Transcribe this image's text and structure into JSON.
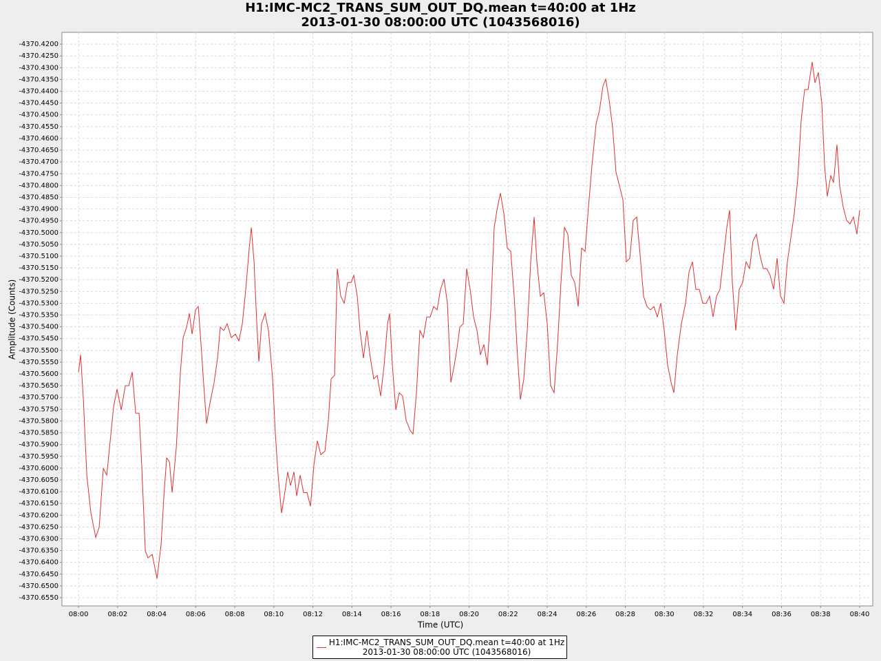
{
  "chart_data": {
    "type": "line",
    "title": "H1:IMC-MC2_TRANS_SUM_OUT_DQ.mean t=40:00 at 1Hz",
    "subtitle": "2013-01-30 08:00:00 UTC (1043568016)",
    "x_label": "Time (UTC)",
    "y_label": "Amplitude (Counts)",
    "grid": true,
    "legend": "bottom",
    "xlim": [
      -0.85,
      40.67
    ],
    "ylim": [
      -4370.6585,
      -4370.415
    ],
    "xticks": [
      {
        "value": 0,
        "label": "08:00"
      },
      {
        "value": 2,
        "label": "08:02"
      },
      {
        "value": 4,
        "label": "08:04"
      },
      {
        "value": 6,
        "label": "08:06"
      },
      {
        "value": 8,
        "label": "08:08"
      },
      {
        "value": 10,
        "label": "08:10"
      },
      {
        "value": 12,
        "label": "08:12"
      },
      {
        "value": 14,
        "label": "08:14"
      },
      {
        "value": 16,
        "label": "08:16"
      },
      {
        "value": 18,
        "label": "08:18"
      },
      {
        "value": 20,
        "label": "08:20"
      },
      {
        "value": 22,
        "label": "08:22"
      },
      {
        "value": 24,
        "label": "08:24"
      },
      {
        "value": 26,
        "label": "08:26"
      },
      {
        "value": 28,
        "label": "08:28"
      },
      {
        "value": 30,
        "label": "08:30"
      },
      {
        "value": 32,
        "label": "08:32"
      },
      {
        "value": 34,
        "label": "08:34"
      },
      {
        "value": 36,
        "label": "08:36"
      },
      {
        "value": 38,
        "label": "08:38"
      },
      {
        "value": 40,
        "label": "08:40"
      }
    ],
    "yticks": [
      {
        "value": -4370.42,
        "label": "-4370.4200"
      },
      {
        "value": -4370.425,
        "label": "-4370.4250"
      },
      {
        "value": -4370.43,
        "label": "-4370.4300"
      },
      {
        "value": -4370.435,
        "label": "-4370.4350"
      },
      {
        "value": -4370.44,
        "label": "-4370.4400"
      },
      {
        "value": -4370.445,
        "label": "-4370.4450"
      },
      {
        "value": -4370.45,
        "label": "-4370.4500"
      },
      {
        "value": -4370.455,
        "label": "-4370.4550"
      },
      {
        "value": -4370.46,
        "label": "-4370.4600"
      },
      {
        "value": -4370.465,
        "label": "-4370.4650"
      },
      {
        "value": -4370.47,
        "label": "-4370.4700"
      },
      {
        "value": -4370.475,
        "label": "-4370.4750"
      },
      {
        "value": -4370.48,
        "label": "-4370.4800"
      },
      {
        "value": -4370.485,
        "label": "-4370.4850"
      },
      {
        "value": -4370.49,
        "label": "-4370.4900"
      },
      {
        "value": -4370.495,
        "label": "-4370.4950"
      },
      {
        "value": -4370.5,
        "label": "-4370.5000"
      },
      {
        "value": -4370.505,
        "label": "-4370.5050"
      },
      {
        "value": -4370.51,
        "label": "-4370.5100"
      },
      {
        "value": -4370.515,
        "label": "-4370.5150"
      },
      {
        "value": -4370.52,
        "label": "-4370.5200"
      },
      {
        "value": -4370.525,
        "label": "-4370.5250"
      },
      {
        "value": -4370.53,
        "label": "-4370.5300"
      },
      {
        "value": -4370.535,
        "label": "-4370.5350"
      },
      {
        "value": -4370.54,
        "label": "-4370.5400"
      },
      {
        "value": -4370.545,
        "label": "-4370.5450"
      },
      {
        "value": -4370.55,
        "label": "-4370.5500"
      },
      {
        "value": -4370.555,
        "label": "-4370.5550"
      },
      {
        "value": -4370.56,
        "label": "-4370.5600"
      },
      {
        "value": -4370.565,
        "label": "-4370.5650"
      },
      {
        "value": -4370.57,
        "label": "-4370.5700"
      },
      {
        "value": -4370.575,
        "label": "-4370.5750"
      },
      {
        "value": -4370.58,
        "label": "-4370.5800"
      },
      {
        "value": -4370.585,
        "label": "-4370.5850"
      },
      {
        "value": -4370.59,
        "label": "-4370.5900"
      },
      {
        "value": -4370.595,
        "label": "-4370.5950"
      },
      {
        "value": -4370.6,
        "label": "-4370.6000"
      },
      {
        "value": -4370.605,
        "label": "-4370.6050"
      },
      {
        "value": -4370.61,
        "label": "-4370.6100"
      },
      {
        "value": -4370.615,
        "label": "-4370.6150"
      },
      {
        "value": -4370.62,
        "label": "-4370.6200"
      },
      {
        "value": -4370.625,
        "label": "-4370.6250"
      },
      {
        "value": -4370.63,
        "label": "-4370.6300"
      },
      {
        "value": -4370.635,
        "label": "-4370.6350"
      },
      {
        "value": -4370.64,
        "label": "-4370.6400"
      },
      {
        "value": -4370.645,
        "label": "-4370.6450"
      },
      {
        "value": -4370.65,
        "label": "-4370.6500"
      },
      {
        "value": -4370.655,
        "label": "-4370.6550"
      }
    ],
    "x": [
      0,
      0.106,
      0.247,
      0.423,
      0.634,
      0.881,
      1.057,
      1.268,
      1.445,
      1.621,
      1.797,
      1.974,
      2.185,
      2.396,
      2.573,
      2.749,
      2.925,
      3.101,
      3.242,
      3.419,
      3.56,
      3.771,
      4.018,
      4.229,
      4.37,
      4.511,
      4.652,
      4.793,
      5.004,
      5.216,
      5.357,
      5.533,
      5.674,
      5.815,
      5.991,
      6.132,
      6.273,
      6.414,
      6.555,
      6.731,
      6.943,
      7.119,
      7.26,
      7.436,
      7.612,
      7.824,
      8.035,
      8.211,
      8.388,
      8.564,
      8.74,
      8.846,
      8.987,
      9.128,
      9.233,
      9.374,
      9.551,
      9.727,
      9.938,
      10.079,
      10.22,
      10.396,
      10.537,
      10.714,
      10.855,
      11.031,
      11.172,
      11.348,
      11.524,
      11.7,
      11.877,
      12.053,
      12.229,
      12.405,
      12.617,
      12.793,
      12.934,
      13.11,
      13.251,
      13.427,
      13.604,
      13.78,
      13.956,
      14.097,
      14.273,
      14.414,
      14.59,
      14.767,
      14.943,
      15.119,
      15.295,
      15.471,
      15.648,
      15.824,
      15.93,
      16.07,
      16.247,
      16.423,
      16.599,
      16.775,
      16.987,
      17.128,
      17.304,
      17.48,
      17.656,
      17.833,
      18.009,
      18.185,
      18.361,
      18.537,
      18.714,
      18.89,
      19.066,
      19.242,
      19.383,
      19.524,
      19.7,
      19.877,
      20.053,
      20.229,
      20.405,
      20.581,
      20.758,
      20.934,
      21.11,
      21.286,
      21.427,
      21.604,
      21.78,
      21.956,
      22.132,
      22.308,
      22.485,
      22.626,
      22.802,
      22.978,
      23.154,
      23.33,
      23.471,
      23.648,
      23.824,
      24,
      24.176,
      24.352,
      24.529,
      24.705,
      24.881,
      25.057,
      25.233,
      25.41,
      25.586,
      25.762,
      25.938,
      26.115,
      26.291,
      26.502,
      26.678,
      26.855,
      26.996,
      27.172,
      27.348,
      27.524,
      27.7,
      27.877,
      28.053,
      28.229,
      28.405,
      28.581,
      28.758,
      28.934,
      29.11,
      29.286,
      29.463,
      29.639,
      29.815,
      29.991,
      30.167,
      30.344,
      30.485,
      30.661,
      30.872,
      31.084,
      31.26,
      31.436,
      31.612,
      31.789,
      31.965,
      32.141,
      32.317,
      32.493,
      32.67,
      32.846,
      33.022,
      33.198,
      33.339,
      33.48,
      33.656,
      33.833,
      34.009,
      34.185,
      34.361,
      34.537,
      34.714,
      34.89,
      35.066,
      35.242,
      35.419,
      35.595,
      35.771,
      35.947,
      36.123,
      36.3,
      36.476,
      36.652,
      36.828,
      37.004,
      37.181,
      37.357,
      37.568,
      37.709,
      37.885,
      38.062,
      38.203,
      38.344,
      38.52,
      38.661,
      38.837,
      38.978,
      39.154,
      39.33,
      39.507,
      39.683,
      39.859,
      40
    ],
    "series": [
      {
        "name": "H1:IMC-MC2_TRANS_SUM_OUT_DQ.mean t=40:00 at 1Hz\n2013-01-30 08:00:00 UTC (1043568016)",
        "color": "#e03030",
        "values": [
          -4370.5592,
          -4370.5519,
          -4370.5709,
          -4370.603,
          -4370.6191,
          -4370.6294,
          -4370.625,
          -4370.6001,
          -4370.603,
          -4370.5884,
          -4370.5738,
          -4370.5665,
          -4370.5753,
          -4370.565,
          -4370.565,
          -4370.5592,
          -4370.5767,
          -4370.5767,
          -4370.6001,
          -4370.6352,
          -4370.6381,
          -4370.6366,
          -4370.6469,
          -4370.6323,
          -4370.6118,
          -4370.5957,
          -4370.5972,
          -4370.6104,
          -4370.5914,
          -4370.5592,
          -4370.5446,
          -4370.5402,
          -4370.5343,
          -4370.5431,
          -4370.5328,
          -4370.5314,
          -4370.5475,
          -4370.565,
          -4370.5811,
          -4370.5723,
          -4370.5636,
          -4370.5533,
          -4370.5402,
          -4370.5416,
          -4370.5387,
          -4370.5446,
          -4370.5431,
          -4370.546,
          -4370.5387,
          -4370.5241,
          -4370.5066,
          -4370.4978,
          -4370.5124,
          -4370.5387,
          -4370.5548,
          -4370.5387,
          -4370.5343,
          -4370.5416,
          -4370.5621,
          -4370.5855,
          -4370.603,
          -4370.6191,
          -4370.6118,
          -4370.6016,
          -4370.6074,
          -4370.6016,
          -4370.6118,
          -4370.603,
          -4370.6104,
          -4370.6104,
          -4370.6162,
          -4370.5986,
          -4370.5884,
          -4370.5943,
          -4370.5928,
          -4370.5797,
          -4370.5621,
          -4370.5607,
          -4370.5153,
          -4370.527,
          -4370.53,
          -4370.5212,
          -4370.5212,
          -4370.5182,
          -4370.527,
          -4370.5416,
          -4370.5533,
          -4370.5416,
          -4370.5533,
          -4370.5621,
          -4370.5607,
          -4370.5694,
          -4370.5563,
          -4370.5387,
          -4370.5343,
          -4370.5563,
          -4370.5753,
          -4370.568,
          -4370.5694,
          -4370.5797,
          -4370.5841,
          -4370.5855,
          -4370.568,
          -4370.5416,
          -4370.5446,
          -4370.5358,
          -4370.5358,
          -4370.5314,
          -4370.5328,
          -4370.5241,
          -4370.5197,
          -4370.53,
          -4370.5636,
          -4370.5563,
          -4370.549,
          -4370.5402,
          -4370.5387,
          -4370.5153,
          -4370.5241,
          -4370.5358,
          -4370.5416,
          -4370.5519,
          -4370.5475,
          -4370.5563,
          -4370.5328,
          -4370.4978,
          -4370.4905,
          -4370.4832,
          -4370.4919,
          -4370.5066,
          -4370.508,
          -4370.527,
          -4370.5533,
          -4370.5709,
          -4370.5621,
          -4370.5416,
          -4370.5124,
          -4370.4934,
          -4370.5124,
          -4370.527,
          -4370.5256,
          -4370.5387,
          -4370.565,
          -4370.568,
          -4370.5475,
          -4370.5212,
          -4370.4978,
          -4370.5007,
          -4370.5182,
          -4370.5212,
          -4370.5314,
          -4370.5066,
          -4370.508,
          -4370.489,
          -4370.4715,
          -4370.4539,
          -4370.4481,
          -4370.4378,
          -4370.4349,
          -4370.4437,
          -4370.4553,
          -4370.4744,
          -4370.4802,
          -4370.4861,
          -4370.5124,
          -4370.5109,
          -4370.4948,
          -4370.4934,
          -4370.5095,
          -4370.527,
          -4370.5314,
          -4370.5328,
          -4370.5314,
          -4370.5358,
          -4370.53,
          -4370.5416,
          -4370.5563,
          -4370.5636,
          -4370.568,
          -4370.5519,
          -4370.5387,
          -4370.53,
          -4370.5168,
          -4370.5124,
          -4370.5241,
          -4370.5241,
          -4370.53,
          -4370.53,
          -4370.527,
          -4370.5358,
          -4370.527,
          -4370.5241,
          -4370.5109,
          -4370.4978,
          -4370.4905,
          -4370.5212,
          -4370.5416,
          -4370.5241,
          -4370.5212,
          -4370.5124,
          -4370.5153,
          -4370.5036,
          -4370.5007,
          -4370.5095,
          -4370.5153,
          -4370.5153,
          -4370.5182,
          -4370.5241,
          -4370.5109,
          -4370.527,
          -4370.53,
          -4370.5124,
          -4370.5022,
          -4370.4919,
          -4370.4773,
          -4370.4524,
          -4370.4393,
          -4370.4393,
          -4370.4276,
          -4370.4364,
          -4370.432,
          -4370.4451,
          -4370.4715,
          -4370.4846,
          -4370.4758,
          -4370.4788,
          -4370.4627,
          -4370.4802,
          -4370.489,
          -4370.4948,
          -4370.4963,
          -4370.4934,
          -4370.5007,
          -4370.4905
        ]
      }
    ]
  }
}
